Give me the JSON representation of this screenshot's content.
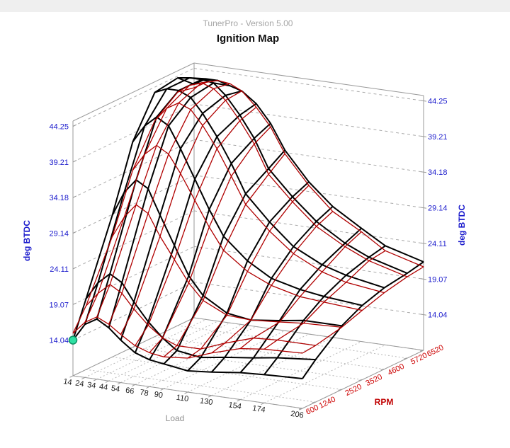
{
  "window": {
    "app_title": "TunerPro - Version 5.00",
    "chart_title": "Ignition Map"
  },
  "colors": {
    "header_strip": "#efefef",
    "frame": "#999999",
    "floor_grid": "#b8b8b8",
    "wall_grid": "#aaaaaa",
    "z_label_blue": "#1a1acc",
    "load_label": "#1a1a1a",
    "rpm_label": "#cc0000",
    "surface_primary": "#000000",
    "surface_compare": "#b00000",
    "marker_fill": "#2ee0a3",
    "marker_stroke": "#0e8f63"
  },
  "chart_data": {
    "type": "surface3d-wireframe",
    "title": "Ignition Map",
    "x_axis": {
      "label": "Load",
      "ticks": [
        14,
        24,
        34,
        44,
        54,
        66,
        78,
        90,
        110,
        130,
        154,
        174,
        206
      ]
    },
    "y_axis": {
      "label": "RPM",
      "ticks": [
        600,
        1240,
        2520,
        3520,
        4600,
        5720,
        6520
      ],
      "color": "#cc0000"
    },
    "z_axis": {
      "label": "deg BTDC",
      "ticks": [
        14.04,
        19.07,
        24.11,
        29.14,
        34.18,
        39.21,
        44.25
      ],
      "color": "#1a1acc",
      "range": [
        9.0,
        45.0
      ]
    },
    "series": [
      {
        "name": "primary-map",
        "color": "#000000",
        "line_width": 2,
        "values": [
          [
            14.04,
            16.5,
            17.5,
            16.5,
            15.0,
            13.5,
            12.8,
            12.5,
            12.0,
            12.3,
            12.8,
            13.0,
            13.2
          ],
          [
            19.0,
            21.5,
            23.0,
            22.0,
            19.5,
            17.0,
            15.0,
            13.5,
            13.0,
            13.5,
            14.0,
            14.5,
            15.0
          ],
          [
            29.0,
            32.5,
            34.5,
            33.5,
            30.0,
            26.0,
            22.0,
            19.5,
            17.5,
            17.0,
            17.5,
            18.0,
            18.0
          ],
          [
            38.0,
            40.5,
            42.0,
            41.0,
            38.0,
            34.0,
            30.0,
            26.5,
            23.5,
            21.5,
            20.5,
            20.0,
            19.5
          ],
          [
            43.5,
            44.25,
            44.25,
            43.5,
            41.5,
            38.5,
            35.0,
            31.0,
            27.5,
            24.5,
            22.5,
            21.5,
            20.5
          ],
          [
            44.0,
            44.25,
            44.25,
            44.0,
            42.5,
            40.0,
            37.0,
            33.0,
            29.5,
            26.5,
            24.0,
            22.5,
            21.0
          ],
          [
            42.0,
            43.0,
            43.0,
            42.5,
            42.0,
            40.5,
            38.0,
            34.5,
            30.5,
            27.5,
            25.0,
            23.0,
            21.5
          ]
        ]
      },
      {
        "name": "compare-map",
        "color": "#b00000",
        "line_width": 1.3,
        "values": [
          [
            15.0,
            16.8,
            17.8,
            17.0,
            15.8,
            14.5,
            13.8,
            13.5,
            13.8,
            15.0,
            16.2,
            16.6,
            16.8
          ],
          [
            18.0,
            20.0,
            21.5,
            20.5,
            18.5,
            16.5,
            15.0,
            14.2,
            14.2,
            15.5,
            16.8,
            17.0,
            17.0
          ],
          [
            26.0,
            29.0,
            31.0,
            30.0,
            27.0,
            24.0,
            21.0,
            18.8,
            17.2,
            17.0,
            17.3,
            17.6,
            17.8
          ],
          [
            34.0,
            36.5,
            38.0,
            37.0,
            34.5,
            31.0,
            27.5,
            24.5,
            22.0,
            20.5,
            19.5,
            19.2,
            18.8
          ],
          [
            39.5,
            41.5,
            42.5,
            41.8,
            39.8,
            36.8,
            33.2,
            29.5,
            26.2,
            23.5,
            21.5,
            20.5,
            19.8
          ],
          [
            42.0,
            43.2,
            43.8,
            43.2,
            41.8,
            39.2,
            36.2,
            32.2,
            28.8,
            25.8,
            23.5,
            22.0,
            20.5
          ],
          [
            41.5,
            42.5,
            43.0,
            42.8,
            42.0,
            40.0,
            37.5,
            34.0,
            30.0,
            26.8,
            24.5,
            22.3,
            20.8
          ]
        ]
      }
    ],
    "marker": {
      "load": 14,
      "rpm": 600,
      "value": 14.04,
      "fill": "#2ee0a3",
      "stroke": "#0e8f63"
    }
  }
}
